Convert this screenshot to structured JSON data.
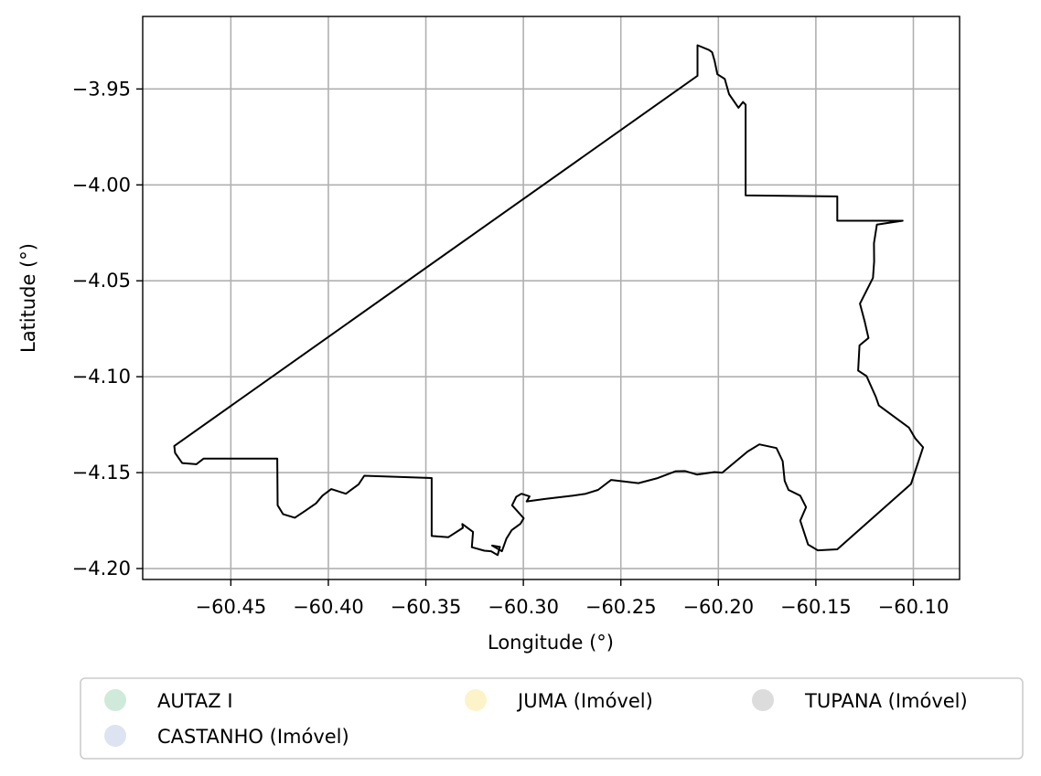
{
  "chart_data": {
    "type": "map",
    "xlabel": "Longitude (°)",
    "ylabel": "Latitude (°)",
    "xlim": [
      -60.4952,
      -60.0763
    ],
    "ylim": [
      -4.2057,
      -3.9122
    ],
    "grid": true,
    "x_ticks": [
      -60.45,
      -60.4,
      -60.35,
      -60.3,
      -60.25,
      -60.2,
      -60.15,
      -60.1
    ],
    "x_tick_labels": [
      "−60.45",
      "−60.40",
      "−60.35",
      "−60.30",
      "−60.25",
      "−60.20",
      "−60.15",
      "−60.10"
    ],
    "y_ticks": [
      -3.95,
      -4.0,
      -4.05,
      -4.1,
      -4.15,
      -4.2
    ],
    "y_tick_labels": [
      "−3.95",
      "−4.00",
      "−4.05",
      "−4.10",
      "−4.15",
      "−4.20"
    ],
    "legend": {
      "placement": "below",
      "columns": 3,
      "entries": [
        {
          "label": "AUTAZ I",
          "color": "#cfeadb"
        },
        {
          "label": "CASTANHO (Imóvel)",
          "color": "#dde3f1"
        },
        {
          "label": "JUMA (Imóvel)",
          "color": "#fdf3c9"
        },
        {
          "label": "TUPANA (Imóvel)",
          "color": "#dcdcdc"
        }
      ]
    },
    "boundary": [
      [
        -60.2107,
        -3.9431
      ],
      [
        -60.2107,
        -3.9272
      ],
      [
        -60.2048,
        -3.9297
      ],
      [
        -60.2032,
        -3.9309
      ],
      [
        -60.2019,
        -3.9354
      ],
      [
        -60.2005,
        -3.9423
      ],
      [
        -60.1967,
        -3.9448
      ],
      [
        -60.1945,
        -3.9527
      ],
      [
        -60.1897,
        -3.9598
      ],
      [
        -60.1874,
        -3.9568
      ],
      [
        -60.186,
        -3.9582
      ],
      [
        -60.186,
        -4.0055
      ],
      [
        -60.139,
        -4.006
      ],
      [
        -60.139,
        -4.0187
      ],
      [
        -60.1055,
        -4.0187
      ],
      [
        -60.1187,
        -4.0207
      ],
      [
        -60.1202,
        -4.0304
      ],
      [
        -60.1201,
        -4.04
      ],
      [
        -60.1207,
        -4.0485
      ],
      [
        -60.1274,
        -4.0619
      ],
      [
        -60.1249,
        -4.0715
      ],
      [
        -60.123,
        -4.0798
      ],
      [
        -60.1276,
        -4.0837
      ],
      [
        -60.1283,
        -4.0968
      ],
      [
        -60.124,
        -4.0997
      ],
      [
        -60.1192,
        -4.1106
      ],
      [
        -60.1177,
        -4.115
      ],
      [
        -60.1023,
        -4.1265
      ],
      [
        -60.099,
        -4.1322
      ],
      [
        -60.095,
        -4.1368
      ],
      [
        -60.1012,
        -4.1559
      ],
      [
        -60.139,
        -4.19
      ],
      [
        -60.149,
        -4.1905
      ],
      [
        -60.154,
        -4.1875
      ],
      [
        -60.158,
        -4.175
      ],
      [
        -60.155,
        -4.168
      ],
      [
        -60.158,
        -4.162
      ],
      [
        -60.164,
        -4.159
      ],
      [
        -60.166,
        -4.1543
      ],
      [
        -60.167,
        -4.144
      ],
      [
        -60.1702,
        -4.1372
      ],
      [
        -60.179,
        -4.1353
      ],
      [
        -60.185,
        -4.139
      ],
      [
        -60.198,
        -4.15
      ],
      [
        -60.202,
        -4.1497
      ],
      [
        -60.211,
        -4.151
      ],
      [
        -60.217,
        -4.1492
      ],
      [
        -60.2219,
        -4.1493
      ],
      [
        -60.2316,
        -4.153
      ],
      [
        -60.241,
        -4.1555
      ],
      [
        -60.255,
        -4.1538
      ],
      [
        -60.2617,
        -4.159
      ],
      [
        -60.268,
        -4.161
      ],
      [
        -60.2745,
        -4.162
      ],
      [
        -60.2889,
        -4.1637
      ],
      [
        -60.2983,
        -4.165
      ],
      [
        -60.2968,
        -4.1624
      ],
      [
        -60.301,
        -4.161
      ],
      [
        -60.3036,
        -4.1626
      ],
      [
        -60.3058,
        -4.167
      ],
      [
        -60.2998,
        -4.1738
      ],
      [
        -60.3015,
        -4.1767
      ],
      [
        -60.306,
        -4.18
      ],
      [
        -60.3087,
        -4.1844
      ],
      [
        -60.311,
        -4.191
      ],
      [
        -60.316,
        -4.188
      ],
      [
        -60.312,
        -4.1887
      ],
      [
        -60.3132,
        -4.193
      ],
      [
        -60.3165,
        -4.191
      ],
      [
        -60.32,
        -4.1907
      ],
      [
        -60.3264,
        -4.1889
      ],
      [
        -60.3258,
        -4.1809
      ],
      [
        -60.3313,
        -4.1768
      ],
      [
        -60.331,
        -4.1788
      ],
      [
        -60.3385,
        -4.1837
      ],
      [
        -60.347,
        -4.183
      ],
      [
        -60.347,
        -4.1528
      ],
      [
        -60.3816,
        -4.1516
      ],
      [
        -60.3845,
        -4.1561
      ],
      [
        -60.391,
        -4.161
      ],
      [
        -60.3985,
        -4.1586
      ],
      [
        -60.403,
        -4.162
      ],
      [
        -60.4063,
        -4.166
      ],
      [
        -60.412,
        -4.17
      ],
      [
        -60.4172,
        -4.1735
      ],
      [
        -60.4232,
        -4.1717
      ],
      [
        -60.426,
        -4.167
      ],
      [
        -60.4262,
        -4.1427
      ],
      [
        -60.464,
        -4.1427
      ],
      [
        -60.4677,
        -4.1456
      ],
      [
        -60.475,
        -4.145
      ],
      [
        -60.4786,
        -4.1397
      ],
      [
        -60.479,
        -4.1361
      ],
      [
        -60.2107,
        -3.9431
      ]
    ]
  }
}
